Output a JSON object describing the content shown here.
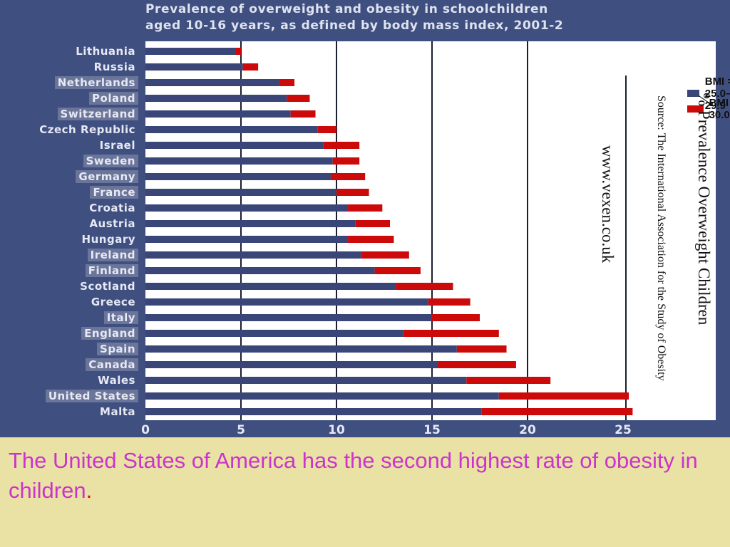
{
  "title": {
    "line1": "Prevalence of overweight and obesity in schoolchildren",
    "line2": "aged 10-16 years, as defined by body mass index, 2001-2"
  },
  "side_text": {
    "heading": "% Prevalence Overweight Children",
    "source": "Source: The International Association for the Study of Obesity",
    "website": "www.vexen.co.uk"
  },
  "caption": {
    "text": "The United States of America has the second highest rate of obesity in  children",
    "end": "."
  },
  "colors": {
    "figure_bg": "#3f4f80",
    "plot_bg": "#ffffff",
    "overweight": "#3a4678",
    "obese": "#cc0a0a",
    "caption_text": "#cc33cc",
    "slide_bg": "#e9e2a4"
  },
  "chart_data": {
    "type": "bar",
    "orientation": "horizontal",
    "stacked": true,
    "categories": [
      "Lithuania",
      "Russia",
      "Netherlands",
      "Poland",
      "Switzerland",
      "Czech Republic",
      "Israel",
      "Sweden",
      "Germany",
      "France",
      "Croatia",
      "Austria",
      "Hungary",
      "Ireland",
      "Finland",
      "Scotland",
      "Greece",
      "Italy",
      "England",
      "Spain",
      "Canada",
      "Wales",
      "United States",
      "Malta"
    ],
    "shaded_categories": [
      "Netherlands",
      "Poland",
      "Switzerland",
      "Sweden",
      "Germany",
      "France",
      "Ireland",
      "Finland",
      "Italy",
      "England",
      "Spain",
      "Canada",
      "United States"
    ],
    "series": [
      {
        "name": "BMI = 25.0–29.9",
        "values": [
          4.7,
          5.1,
          7.0,
          7.4,
          7.6,
          9.0,
          9.3,
          9.8,
          9.7,
          10.0,
          10.6,
          11.0,
          10.6,
          11.3,
          12.0,
          13.1,
          14.8,
          15.0,
          13.5,
          16.3,
          15.3,
          16.8,
          18.5,
          17.6
        ]
      },
      {
        "name": "BMI = 30.0",
        "values": [
          0.3,
          0.8,
          0.8,
          1.2,
          1.3,
          1.0,
          1.9,
          1.4,
          1.8,
          1.7,
          1.8,
          1.8,
          2.4,
          2.5,
          2.4,
          3.0,
          2.2,
          2.5,
          5.0,
          2.6,
          4.1,
          4.4,
          6.8,
          7.9
        ]
      }
    ],
    "xlim": [
      0,
      25
    ],
    "xticks": [
      0,
      5,
      10,
      15,
      20,
      25
    ],
    "title": "Prevalence of overweight and obesity in schoolchildren aged 10-16 years, as defined by body mass index, 2001-2",
    "xlabel": "",
    "ylabel": "",
    "grid": "vertical lines at 5, 10, 15, 20",
    "legend_placement": "top-right"
  }
}
